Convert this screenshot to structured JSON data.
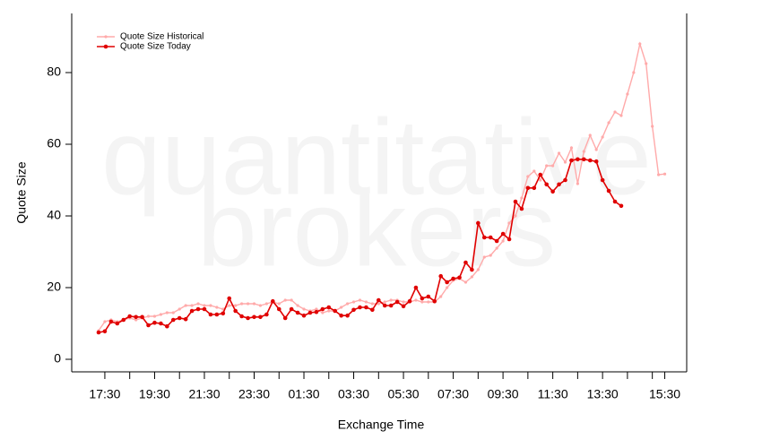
{
  "chart_data": {
    "type": "line",
    "xlabel": "Exchange Time",
    "ylabel": "Quote Size",
    "watermark": [
      "quantitative",
      "brokers"
    ],
    "legend": "upper left",
    "ylim": [
      -3.5,
      96.5
    ],
    "yticks": [
      0,
      20,
      40,
      60,
      80
    ],
    "categories": [
      null,
      "17:30",
      null,
      null,
      null,
      null,
      null,
      null,
      null,
      "19:30",
      null,
      null,
      null,
      null,
      null,
      null,
      null,
      "21:30",
      null,
      null,
      null,
      null,
      null,
      null,
      null,
      "23:30",
      null,
      null,
      null,
      null,
      null,
      null,
      null,
      "01:30",
      null,
      null,
      null,
      null,
      null,
      null,
      null,
      "03:30",
      null,
      null,
      null,
      null,
      null,
      null,
      null,
      "05:30",
      null,
      null,
      null,
      null,
      null,
      null,
      null,
      "07:30",
      null,
      null,
      null,
      null,
      null,
      null,
      null,
      "09:30",
      null,
      null,
      null,
      null,
      null,
      null,
      null,
      "11:30",
      null,
      null,
      null,
      null,
      null,
      null,
      null,
      "13:30",
      null,
      null,
      null,
      null,
      null,
      null,
      null,
      null,
      null,
      "15:30"
    ],
    "series": [
      {
        "name": "Quote Size Historical",
        "color": "#ffaaaa",
        "values": [
          8,
          10.5,
          11,
          10.5,
          11,
          11.5,
          11,
          11.5,
          12,
          12,
          12.5,
          13,
          13,
          14,
          15,
          15,
          15.5,
          15,
          15,
          14.5,
          14,
          15,
          15,
          15.5,
          15.5,
          15.5,
          15,
          15.5,
          16,
          15.5,
          16.5,
          16.5,
          15,
          14,
          13.5,
          14,
          13,
          13.5,
          13.5,
          14.5,
          15.5,
          16,
          16.5,
          16,
          15.5,
          15.5,
          16,
          16.5,
          16.5,
          16,
          16,
          16.5,
          16,
          16,
          16,
          17.5,
          20,
          22,
          22.5,
          21.5,
          23,
          25,
          28.5,
          29,
          31,
          33,
          38,
          40,
          45,
          51,
          52.5,
          50,
          54,
          54,
          57.5,
          55,
          59,
          49,
          58,
          62.5,
          58.5,
          62,
          66,
          69,
          68,
          74,
          80,
          88,
          82.5,
          65,
          51.5,
          51.7
        ]
      },
      {
        "name": "Quote Size Today",
        "color": "#e00000",
        "values": [
          7.5,
          7.8,
          10.5,
          10,
          11,
          12,
          11.8,
          11.8,
          9.5,
          10.2,
          10,
          9.2,
          11,
          11.5,
          11.2,
          13.5,
          14,
          14,
          12.5,
          12.5,
          12.8,
          17,
          13.5,
          12,
          11.5,
          11.8,
          11.8,
          12.5,
          16.2,
          14,
          11.5,
          14,
          13,
          12.2,
          13,
          13.2,
          14,
          14.5,
          13.5,
          12.2,
          12.2,
          13.8,
          14.5,
          14.5,
          13.8,
          16.5,
          15,
          15,
          16,
          14.8,
          16.2,
          20,
          17,
          17.5,
          16.2,
          23.2,
          21.5,
          22.5,
          22.8,
          27,
          25,
          38,
          34,
          34,
          33,
          35,
          33.5,
          44,
          42,
          47.8,
          47.8,
          51.5,
          48.8,
          46.8,
          48.8,
          50,
          55.5,
          55.8,
          55.8,
          55.5,
          55.2,
          50,
          47,
          44,
          42.8,
          null,
          null,
          null,
          null,
          null,
          null,
          null
        ]
      }
    ]
  }
}
